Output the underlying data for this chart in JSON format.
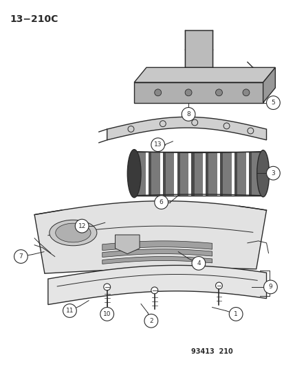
{
  "title": "13−210C",
  "footer": "93413  210",
  "bg_color": "#ffffff",
  "line_color": "#2a2a2a",
  "figsize": [
    4.14,
    5.33
  ],
  "dpi": 100
}
